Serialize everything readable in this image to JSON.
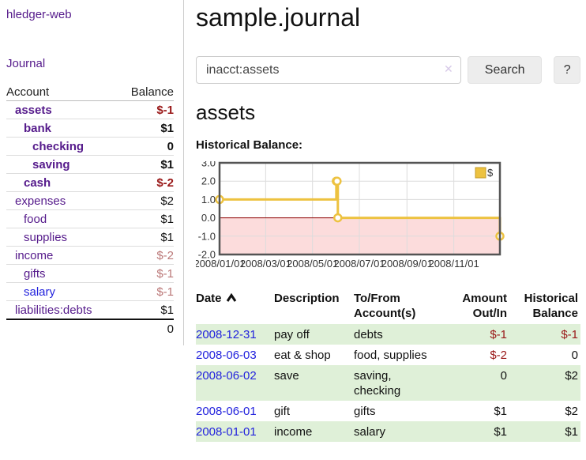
{
  "sidebar": {
    "brand": "hledger-web",
    "nav_journal": "Journal",
    "accounts_table": {
      "headers": {
        "account": "Account",
        "balance": "Balance"
      },
      "rows": [
        {
          "account": "assets",
          "balance": "$-1",
          "indent": 1,
          "current": true,
          "balance_style": "neg-strong"
        },
        {
          "account": "bank",
          "balance": "$1",
          "indent": 2,
          "current": true,
          "balance_style": "pos-strong"
        },
        {
          "account": "checking",
          "balance": "0",
          "indent": 3,
          "current": true,
          "balance_style": "pos-strong"
        },
        {
          "account": "saving",
          "balance": "$1",
          "indent": 3,
          "current": true,
          "balance_style": "pos-strong"
        },
        {
          "account": "cash",
          "balance": "$-2",
          "indent": 2,
          "current": true,
          "balance_style": "neg-strong"
        },
        {
          "account": "expenses",
          "balance": "$2",
          "indent": 1,
          "current": false,
          "balance_style": "pos"
        },
        {
          "account": "food",
          "balance": "$1",
          "indent": 2,
          "current": false,
          "balance_style": "pos"
        },
        {
          "account": "supplies",
          "balance": "$1",
          "indent": 2,
          "current": false,
          "balance_style": "pos"
        },
        {
          "account": "income",
          "balance": "$-2",
          "indent": 1,
          "current": false,
          "balance_style": "neg-muted"
        },
        {
          "account": "gifts",
          "balance": "$-1",
          "indent": 2,
          "current": false,
          "balance_style": "neg-muted"
        },
        {
          "account": "salary",
          "balance": "$-1",
          "indent": 2,
          "current": false,
          "balance_style": "neg-muted",
          "link_style": "blue"
        },
        {
          "account": "liabilities:debts",
          "balance": "$1",
          "indent": 1,
          "current": false,
          "balance_style": "pos"
        }
      ],
      "total": "0"
    }
  },
  "header": {
    "title": "sample.journal"
  },
  "search": {
    "value": "inacct:assets",
    "clear_icon": "✕",
    "button_label": "Search",
    "help_label": "?"
  },
  "main": {
    "account_title": "assets",
    "chart_label": "Historical Balance:"
  },
  "chart_data": {
    "type": "line",
    "style": "step",
    "title": "Historical Balance:",
    "legend_position": "top-right",
    "xlim": [
      "2008-01-01",
      "2008-12-31"
    ],
    "ylim": [
      -2,
      3
    ],
    "grid": true,
    "series": [
      {
        "name": "$",
        "color": "#edc240",
        "points": [
          [
            "2008-01-01",
            1
          ],
          [
            "2008-06-01",
            2
          ],
          [
            "2008-06-02",
            2
          ],
          [
            "2008-06-03",
            0
          ],
          [
            "2008-12-31",
            -1
          ]
        ]
      }
    ],
    "x_ticks": [
      {
        "label": "2008/01/01",
        "date": "2008-01-01"
      },
      {
        "label": "2008/03/01",
        "date": "2008-03-01"
      },
      {
        "label": "2008/05/01",
        "date": "2008-05-01"
      },
      {
        "label": "2008/07/01",
        "date": "2008-07-01"
      },
      {
        "label": "2008/09/01",
        "date": "2008-09-01"
      },
      {
        "label": "2008/11/01",
        "date": "2008-11-01"
      }
    ],
    "y_ticks": [
      {
        "label": "3.0",
        "value": 3
      },
      {
        "label": "2.0",
        "value": 2
      },
      {
        "label": "1.0",
        "value": 1
      },
      {
        "label": "0.0",
        "value": 0
      },
      {
        "label": "-1.0",
        "value": -1
      },
      {
        "label": "-2.0",
        "value": -2
      }
    ],
    "negative_region_color": "#fcdcdc",
    "zero_line_color": "#8b0000",
    "grid_color": "#dcdcdc",
    "border_color": "#545454"
  },
  "register": {
    "headers": [
      "Date",
      "Description",
      "To/From Account(s)",
      "Amount Out/In",
      "Historical Balance"
    ],
    "rows": [
      {
        "date": "2008-12-31",
        "description": "pay off",
        "accounts": "debts",
        "amount": "$-1",
        "amount_neg": true,
        "balance": "$-1",
        "balance_neg": true
      },
      {
        "date": "2008-06-03",
        "description": "eat & shop",
        "accounts": "food, supplies",
        "amount": "$-2",
        "amount_neg": true,
        "balance": "0",
        "balance_neg": false
      },
      {
        "date": "2008-06-02",
        "description": "save",
        "accounts": "saving,\nchecking",
        "amount": "0",
        "amount_neg": false,
        "balance": "$2",
        "balance_neg": false
      },
      {
        "date": "2008-06-01",
        "description": "gift",
        "accounts": "gifts",
        "amount": "$1",
        "amount_neg": false,
        "balance": "$2",
        "balance_neg": false
      },
      {
        "date": "2008-01-01",
        "description": "income",
        "accounts": "salary",
        "amount": "$1",
        "amount_neg": false,
        "balance": "$1",
        "balance_neg": false
      }
    ]
  }
}
